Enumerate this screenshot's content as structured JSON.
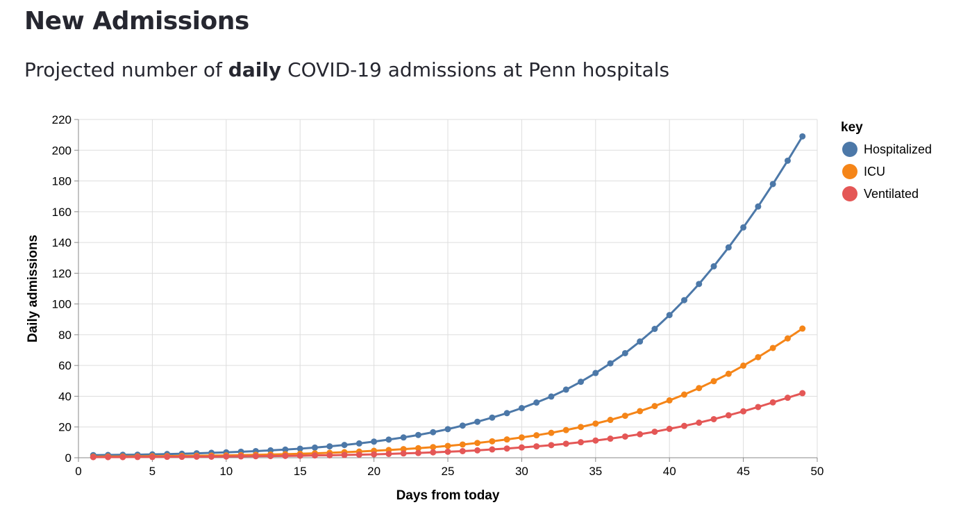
{
  "header": {
    "title": "New Admissions",
    "subtitle_prefix": "Projected number of ",
    "subtitle_bold": "daily",
    "subtitle_suffix": " COVID-19 admissions at Penn hospitals"
  },
  "chart_data": {
    "type": "line",
    "xlabel": "Days from today",
    "ylabel": "Daily admissions",
    "xlim": [
      0,
      50
    ],
    "ylim": [
      0,
      220
    ],
    "x_ticks": [
      0,
      5,
      10,
      15,
      20,
      25,
      30,
      35,
      40,
      45,
      50
    ],
    "y_ticks": [
      0,
      20,
      40,
      60,
      80,
      100,
      120,
      140,
      160,
      180,
      200,
      220
    ],
    "grid": true,
    "legend": {
      "title": "key",
      "position": "right"
    },
    "x": [
      1,
      2,
      3,
      4,
      5,
      6,
      7,
      8,
      9,
      10,
      11,
      12,
      13,
      14,
      15,
      16,
      17,
      18,
      19,
      20,
      21,
      22,
      23,
      24,
      25,
      26,
      27,
      28,
      29,
      30,
      31,
      32,
      33,
      34,
      35,
      36,
      37,
      38,
      39,
      40,
      41,
      42,
      43,
      44,
      45,
      46,
      47,
      48,
      49
    ],
    "series": [
      {
        "name": "Hospitalized",
        "color": "#4c78a8",
        "values": [
          1.7,
          1.8,
          1.9,
          2.0,
          2.2,
          2.4,
          2.6,
          2.9,
          3.2,
          3.5,
          3.9,
          4.3,
          4.8,
          5.3,
          5.9,
          6.6,
          7.4,
          8.3,
          9.3,
          10.5,
          11.8,
          13.2,
          14.8,
          16.6,
          18.6,
          20.9,
          23.4,
          26.1,
          29.0,
          32.3,
          35.9,
          39.8,
          44.3,
          49.4,
          55.1,
          61.4,
          68.0,
          75.6,
          83.8,
          92.8,
          102.5,
          113.0,
          124.5,
          136.8,
          149.8,
          163.4,
          178.0,
          193.2,
          209.0
        ]
      },
      {
        "name": "ICU",
        "color": "#f58518",
        "values": [
          0.7,
          0.8,
          0.8,
          0.9,
          1.0,
          1.1,
          1.2,
          1.3,
          1.4,
          1.5,
          1.7,
          1.9,
          2.1,
          2.3,
          2.6,
          2.9,
          3.2,
          3.6,
          4.0,
          4.5,
          5.0,
          5.6,
          6.2,
          6.9,
          7.7,
          8.6,
          9.6,
          10.7,
          11.9,
          13.2,
          14.6,
          16.2,
          18.0,
          20.0,
          22.2,
          24.6,
          27.3,
          30.3,
          33.6,
          37.3,
          41.1,
          45.3,
          49.8,
          54.6,
          59.9,
          65.4,
          71.4,
          77.6,
          84.0
        ]
      },
      {
        "name": "Ventilated",
        "color": "#e45756",
        "values": [
          0.4,
          0.4,
          0.4,
          0.5,
          0.5,
          0.6,
          0.6,
          0.7,
          0.7,
          0.8,
          0.9,
          1.0,
          1.1,
          1.2,
          1.3,
          1.5,
          1.6,
          1.8,
          2.0,
          2.2,
          2.5,
          2.8,
          3.1,
          3.5,
          3.9,
          4.3,
          4.8,
          5.4,
          6.0,
          6.7,
          7.4,
          8.2,
          9.1,
          10.1,
          11.2,
          12.4,
          13.8,
          15.3,
          16.9,
          18.8,
          20.7,
          22.8,
          25.1,
          27.6,
          30.2,
          33.0,
          36.0,
          39.0,
          42.0
        ]
      }
    ]
  }
}
